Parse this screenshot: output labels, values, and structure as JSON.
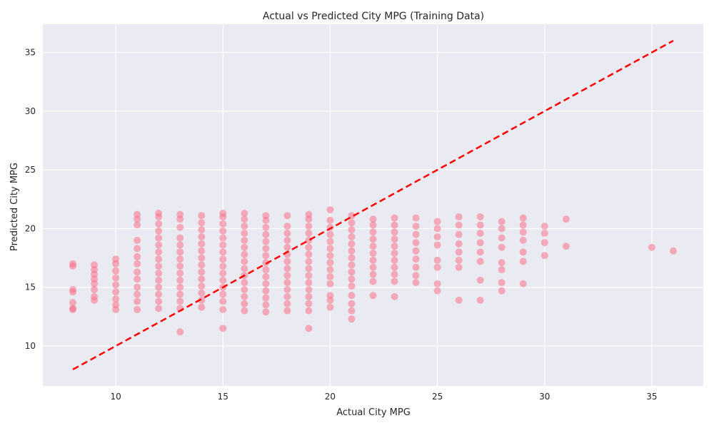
{
  "chart_data": {
    "type": "scatter",
    "title": "Actual vs Predicted City MPG (Training Data)",
    "xlabel": "Actual City MPG",
    "ylabel": "Predicted City MPG",
    "xlim": [
      6.6,
      37.4
    ],
    "ylim": [
      6.6,
      37.4
    ],
    "xticks": [
      10,
      15,
      20,
      25,
      30,
      35
    ],
    "yticks": [
      10,
      15,
      20,
      25,
      30,
      35
    ],
    "grid": true,
    "colors": {
      "background": "#eaeaf2",
      "grid": "#ffffff",
      "points": "#f77189",
      "reference_line": "#ff0000"
    },
    "series": [
      {
        "values": [
          [
            8,
            13.1
          ],
          [
            8,
            13.2
          ],
          [
            8,
            13.7
          ],
          [
            8,
            14.6
          ],
          [
            8,
            14.8
          ],
          [
            8,
            16.8
          ],
          [
            8,
            17.0
          ],
          [
            9,
            13.9
          ],
          [
            9,
            14.2
          ],
          [
            9,
            14.8
          ],
          [
            9,
            15.3
          ],
          [
            9,
            15.7
          ],
          [
            9,
            16.1
          ],
          [
            9,
            16.5
          ],
          [
            9,
            16.9
          ],
          [
            10,
            13.1
          ],
          [
            10,
            13.5
          ],
          [
            10,
            14.0
          ],
          [
            10,
            14.6
          ],
          [
            10,
            15.2
          ],
          [
            10,
            15.8
          ],
          [
            10,
            16.4
          ],
          [
            10,
            17.0
          ],
          [
            10,
            17.4
          ],
          [
            11,
            13.1
          ],
          [
            11,
            13.8
          ],
          [
            11,
            14.4
          ],
          [
            11,
            15.0
          ],
          [
            11,
            15.7
          ],
          [
            11,
            16.3
          ],
          [
            11,
            17.0
          ],
          [
            11,
            17.6
          ],
          [
            11,
            18.3
          ],
          [
            11,
            19.0
          ],
          [
            11,
            20.3
          ],
          [
            11,
            20.8
          ],
          [
            11,
            21.2
          ],
          [
            12,
            13.2
          ],
          [
            12,
            13.8
          ],
          [
            12,
            14.4
          ],
          [
            12,
            15.0
          ],
          [
            12,
            15.6
          ],
          [
            12,
            16.2
          ],
          [
            12,
            16.8
          ],
          [
            12,
            17.4
          ],
          [
            12,
            18.0
          ],
          [
            12,
            18.6
          ],
          [
            12,
            19.2
          ],
          [
            12,
            19.8
          ],
          [
            12,
            20.4
          ],
          [
            12,
            21.0
          ],
          [
            12,
            21.3
          ],
          [
            13,
            11.2
          ],
          [
            13,
            13.2
          ],
          [
            13,
            13.8
          ],
          [
            13,
            14.4
          ],
          [
            13,
            15.0
          ],
          [
            13,
            15.6
          ],
          [
            13,
            16.2
          ],
          [
            13,
            16.8
          ],
          [
            13,
            17.4
          ],
          [
            13,
            18.0
          ],
          [
            13,
            18.6
          ],
          [
            13,
            19.2
          ],
          [
            13,
            20.1
          ],
          [
            13,
            20.8
          ],
          [
            13,
            21.2
          ],
          [
            14,
            13.3
          ],
          [
            14,
            13.9
          ],
          [
            14,
            14.5
          ],
          [
            14,
            15.1
          ],
          [
            14,
            15.7
          ],
          [
            14,
            16.3
          ],
          [
            14,
            16.9
          ],
          [
            14,
            17.5
          ],
          [
            14,
            18.1
          ],
          [
            14,
            18.7
          ],
          [
            14,
            19.3
          ],
          [
            14,
            19.9
          ],
          [
            14,
            20.5
          ],
          [
            14,
            21.1
          ],
          [
            15,
            11.5
          ],
          [
            15,
            13.1
          ],
          [
            15,
            13.8
          ],
          [
            15,
            14.4
          ],
          [
            15,
            15.0
          ],
          [
            15,
            15.6
          ],
          [
            15,
            16.2
          ],
          [
            15,
            16.8
          ],
          [
            15,
            17.4
          ],
          [
            15,
            18.0
          ],
          [
            15,
            18.6
          ],
          [
            15,
            19.2
          ],
          [
            15,
            19.8
          ],
          [
            15,
            20.4
          ],
          [
            15,
            21.0
          ],
          [
            15,
            21.3
          ],
          [
            16,
            13.0
          ],
          [
            16,
            13.6
          ],
          [
            16,
            14.2
          ],
          [
            16,
            14.8
          ],
          [
            16,
            15.4
          ],
          [
            16,
            16.0
          ],
          [
            16,
            16.6
          ],
          [
            16,
            17.2
          ],
          [
            16,
            17.8
          ],
          [
            16,
            18.4
          ],
          [
            16,
            19.0
          ],
          [
            16,
            19.6
          ],
          [
            16,
            20.2
          ],
          [
            16,
            20.8
          ],
          [
            16,
            21.3
          ],
          [
            17,
            12.9
          ],
          [
            17,
            13.5
          ],
          [
            17,
            14.1
          ],
          [
            17,
            14.7
          ],
          [
            17,
            15.3
          ],
          [
            17,
            15.9
          ],
          [
            17,
            16.5
          ],
          [
            17,
            17.1
          ],
          [
            17,
            17.7
          ],
          [
            17,
            18.3
          ],
          [
            17,
            18.9
          ],
          [
            17,
            19.5
          ],
          [
            17,
            20.1
          ],
          [
            17,
            20.7
          ],
          [
            17,
            21.1
          ],
          [
            18,
            13.0
          ],
          [
            18,
            13.6
          ],
          [
            18,
            14.2
          ],
          [
            18,
            14.8
          ],
          [
            18,
            15.4
          ],
          [
            18,
            16.0
          ],
          [
            18,
            16.6
          ],
          [
            18,
            17.2
          ],
          [
            18,
            17.8
          ],
          [
            18,
            18.4
          ],
          [
            18,
            19.0
          ],
          [
            18,
            19.6
          ],
          [
            18,
            20.2
          ],
          [
            18,
            21.1
          ],
          [
            19,
            11.5
          ],
          [
            19,
            13.0
          ],
          [
            19,
            13.6
          ],
          [
            19,
            14.2
          ],
          [
            19,
            14.8
          ],
          [
            19,
            15.4
          ],
          [
            19,
            16.0
          ],
          [
            19,
            16.6
          ],
          [
            19,
            17.2
          ],
          [
            19,
            17.8
          ],
          [
            19,
            18.4
          ],
          [
            19,
            19.0
          ],
          [
            19,
            19.6
          ],
          [
            19,
            20.2
          ],
          [
            19,
            20.8
          ],
          [
            19,
            21.2
          ],
          [
            20,
            13.3
          ],
          [
            20,
            13.9
          ],
          [
            20,
            14.3
          ],
          [
            20,
            15.3
          ],
          [
            20,
            15.9
          ],
          [
            20,
            16.5
          ],
          [
            20,
            17.1
          ],
          [
            20,
            17.7
          ],
          [
            20,
            18.3
          ],
          [
            20,
            18.9
          ],
          [
            20,
            19.5
          ],
          [
            20,
            20.1
          ],
          [
            20,
            20.7
          ],
          [
            20,
            21.6
          ],
          [
            21,
            12.3
          ],
          [
            21,
            13.0
          ],
          [
            21,
            13.6
          ],
          [
            21,
            14.3
          ],
          [
            21,
            15.1
          ],
          [
            21,
            15.7
          ],
          [
            21,
            16.3
          ],
          [
            21,
            16.9
          ],
          [
            21,
            17.5
          ],
          [
            21,
            18.1
          ],
          [
            21,
            18.7
          ],
          [
            21,
            19.3
          ],
          [
            21,
            19.9
          ],
          [
            21,
            20.5
          ],
          [
            21,
            21.1
          ],
          [
            22,
            14.3
          ],
          [
            22,
            15.5
          ],
          [
            22,
            16.1
          ],
          [
            22,
            16.7
          ],
          [
            22,
            17.3
          ],
          [
            22,
            17.9
          ],
          [
            22,
            18.5
          ],
          [
            22,
            19.1
          ],
          [
            22,
            19.7
          ],
          [
            22,
            20.3
          ],
          [
            22,
            20.8
          ],
          [
            23,
            14.2
          ],
          [
            23,
            15.5
          ],
          [
            23,
            16.1
          ],
          [
            23,
            16.7
          ],
          [
            23,
            17.3
          ],
          [
            23,
            17.9
          ],
          [
            23,
            18.5
          ],
          [
            23,
            19.1
          ],
          [
            23,
            19.7
          ],
          [
            23,
            20.3
          ],
          [
            23,
            20.9
          ],
          [
            24,
            15.4
          ],
          [
            24,
            16.0
          ],
          [
            24,
            16.7
          ],
          [
            24,
            17.4
          ],
          [
            24,
            18.1
          ],
          [
            24,
            18.8
          ],
          [
            24,
            19.5
          ],
          [
            24,
            20.2
          ],
          [
            24,
            20.9
          ],
          [
            25,
            14.7
          ],
          [
            25,
            15.3
          ],
          [
            25,
            16.7
          ],
          [
            25,
            17.3
          ],
          [
            25,
            18.6
          ],
          [
            25,
            19.3
          ],
          [
            25,
            20.0
          ],
          [
            25,
            20.6
          ],
          [
            26,
            13.9
          ],
          [
            26,
            16.7
          ],
          [
            26,
            17.3
          ],
          [
            26,
            18.0
          ],
          [
            26,
            18.7
          ],
          [
            26,
            19.5
          ],
          [
            26,
            20.3
          ],
          [
            26,
            21.0
          ],
          [
            27,
            13.9
          ],
          [
            27,
            15.6
          ],
          [
            27,
            17.2
          ],
          [
            27,
            18.0
          ],
          [
            27,
            18.8
          ],
          [
            27,
            19.6
          ],
          [
            27,
            20.3
          ],
          [
            27,
            21.0
          ],
          [
            28,
            14.7
          ],
          [
            28,
            15.4
          ],
          [
            28,
            16.5
          ],
          [
            28,
            17.1
          ],
          [
            28,
            18.4
          ],
          [
            28,
            19.2
          ],
          [
            28,
            20.0
          ],
          [
            28,
            20.6
          ],
          [
            29,
            15.3
          ],
          [
            29,
            17.2
          ],
          [
            29,
            18.0
          ],
          [
            29,
            19.0
          ],
          [
            29,
            19.7
          ],
          [
            29,
            20.3
          ],
          [
            29,
            20.9
          ],
          [
            30,
            17.7
          ],
          [
            30,
            18.8
          ],
          [
            30,
            19.6
          ],
          [
            30,
            20.2
          ],
          [
            31,
            18.5
          ],
          [
            31,
            20.8
          ],
          [
            35,
            18.4
          ],
          [
            36,
            18.1
          ]
        ]
      }
    ],
    "reference_line": {
      "style": "dashed",
      "x": [
        8,
        36
      ],
      "y": [
        8,
        36
      ]
    }
  }
}
